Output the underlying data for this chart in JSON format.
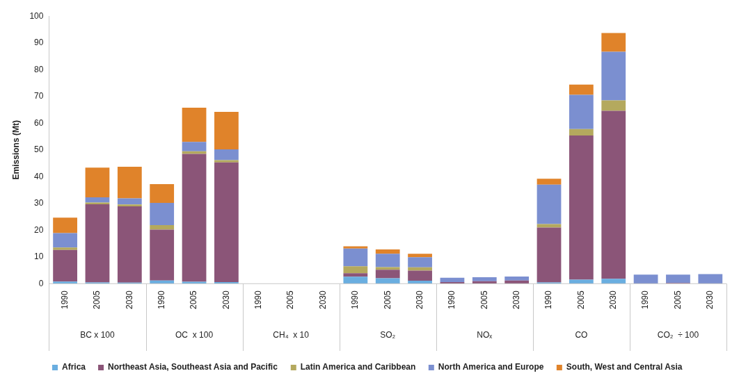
{
  "chart_data": {
    "type": "bar",
    "stacked": true,
    "ylabel": "Emissions (Mt)",
    "ylim": [
      0,
      100
    ],
    "yticks": [
      0,
      10,
      20,
      30,
      40,
      50,
      60,
      70,
      80,
      90,
      100
    ],
    "grid": false,
    "legend": "bottom",
    "categories": [
      "1990",
      "2005",
      "2030",
      "1990",
      "2005",
      "2030",
      "1990",
      "2005",
      "2030",
      "1990",
      "2005",
      "2030",
      "1990",
      "2005",
      "2030",
      "1990",
      "2005",
      "2030",
      "1990",
      "2005",
      "2030"
    ],
    "annotations": [
      "BC x 100",
      "OC  x 100",
      "CH₄  x 10",
      "SO₂",
      "NOₓ",
      "CO",
      "CO₂  ÷ 100"
    ],
    "series": [
      {
        "name": "Africa",
        "color": "#6aaee0",
        "values": [
          0.8,
          0.5,
          0.4,
          1.2,
          0.7,
          0.6,
          null,
          null,
          null,
          2.6,
          2.0,
          1.1,
          null,
          null,
          null,
          0.5,
          1.5,
          1.8,
          null,
          null,
          null
        ]
      },
      {
        "name": "Northeast Asia, Southeast Asia and Pacific",
        "color": "#8b5578",
        "values": [
          11.8,
          29.2,
          28.5,
          19.0,
          47.8,
          44.7,
          null,
          null,
          null,
          1.3,
          3.2,
          3.8,
          0.6,
          0.9,
          1.2,
          20.5,
          53.9,
          62.8,
          null,
          0.3,
          null
        ]
      },
      {
        "name": "Latin America and Caribbean",
        "color": "#b4a95e",
        "values": [
          0.9,
          0.6,
          0.7,
          1.7,
          1.0,
          0.9,
          null,
          null,
          null,
          2.6,
          1.0,
          1.2,
          null,
          null,
          null,
          1.3,
          2.4,
          3.9,
          null,
          null,
          null
        ]
      },
      {
        "name": "North America and Europe",
        "color": "#7b8fd0",
        "values": [
          5.4,
          2.0,
          2.3,
          8.3,
          3.5,
          4.0,
          null,
          null,
          null,
          6.6,
          5.0,
          3.8,
          1.6,
          1.5,
          1.5,
          14.7,
          12.8,
          18.2,
          3.4,
          3.1,
          3.6
        ]
      },
      {
        "name": "South, West and Central Asia",
        "color": "#e0832a",
        "values": [
          5.8,
          11.1,
          11.8,
          7.0,
          12.8,
          14.0,
          null,
          null,
          null,
          0.9,
          1.6,
          1.3,
          null,
          null,
          null,
          2.2,
          3.8,
          7.0,
          null,
          null,
          null
        ]
      }
    ]
  }
}
